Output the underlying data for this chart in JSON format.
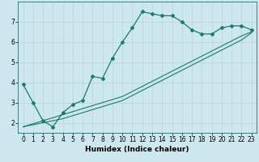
{
  "title": "",
  "xlabel": "Humidex (Indice chaleur)",
  "bg_color": "#cce8ee",
  "grid_color": "#b8d4d8",
  "line_color": "#1a7a6e",
  "x_data": [
    0,
    1,
    2,
    3,
    4,
    5,
    6,
    7,
    8,
    9,
    10,
    11,
    12,
    13,
    14,
    15,
    16,
    17,
    18,
    19,
    20,
    21,
    22,
    23
  ],
  "y_main": [
    3.9,
    3.0,
    2.1,
    1.8,
    2.5,
    2.9,
    3.1,
    4.3,
    4.2,
    5.2,
    6.0,
    6.7,
    7.5,
    7.4,
    7.3,
    7.3,
    7.0,
    6.6,
    6.4,
    6.4,
    6.7,
    6.8,
    6.8,
    6.6
  ],
  "y_line1": [
    1.8,
    1.95,
    2.1,
    2.25,
    2.4,
    2.55,
    2.7,
    2.85,
    3.0,
    3.15,
    3.3,
    3.55,
    3.8,
    4.05,
    4.3,
    4.55,
    4.8,
    5.05,
    5.3,
    5.55,
    5.8,
    6.05,
    6.3,
    6.5
  ],
  "y_line2": [
    1.8,
    1.9,
    2.0,
    2.1,
    2.2,
    2.35,
    2.5,
    2.65,
    2.8,
    2.95,
    3.1,
    3.35,
    3.6,
    3.85,
    4.1,
    4.35,
    4.6,
    4.85,
    5.1,
    5.35,
    5.6,
    5.85,
    6.1,
    6.45
  ],
  "xlim": [
    -0.5,
    23.5
  ],
  "ylim": [
    1.5,
    8.0
  ],
  "yticks": [
    2,
    3,
    4,
    5,
    6,
    7
  ],
  "xticks": [
    0,
    1,
    2,
    3,
    4,
    5,
    6,
    7,
    8,
    9,
    10,
    11,
    12,
    13,
    14,
    15,
    16,
    17,
    18,
    19,
    20,
    21,
    22,
    23
  ],
  "tick_fontsize": 5.5,
  "label_fontsize": 6.5
}
